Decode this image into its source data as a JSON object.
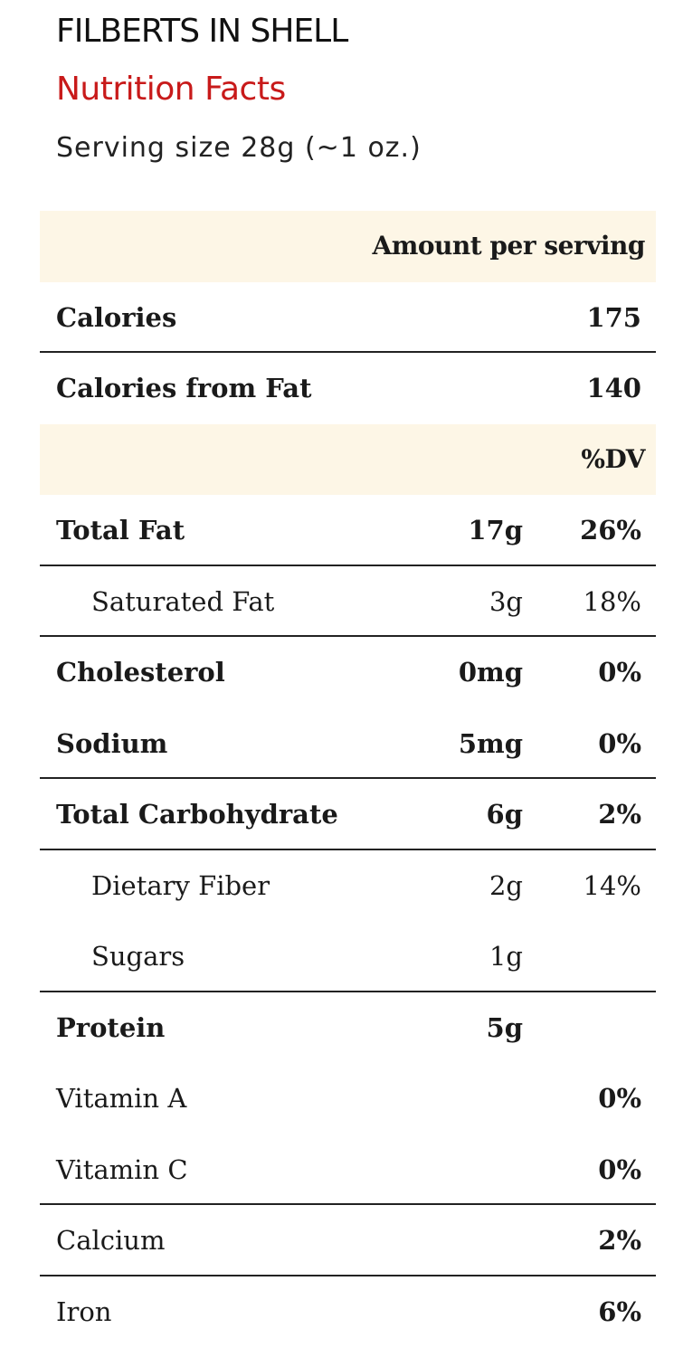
{
  "product_title": "FILBERTS IN SHELL",
  "label_heading": "Nutrition Facts",
  "serving_size": "Serving size 28g (~1 oz.)",
  "headers": {
    "amount_per_serving": "Amount per serving",
    "daily_value": "%DV"
  },
  "calories": {
    "label": "Calories",
    "value": "175"
  },
  "calories_from_fat": {
    "label": "Calories from Fat",
    "value": "140"
  },
  "nutrients": [
    {
      "label": "Total Fat",
      "amount": "17g",
      "dv": "26%"
    },
    {
      "label": "Saturated Fat",
      "amount": "3g",
      "dv": "18%"
    },
    {
      "label": "Cholesterol",
      "amount": "0mg",
      "dv": "0%"
    },
    {
      "label": "Sodium",
      "amount": "5mg",
      "dv": "0%"
    },
    {
      "label": "Total Carbohydrate",
      "amount": "6g",
      "dv": "2%"
    },
    {
      "label": "Dietary Fiber",
      "amount": "2g",
      "dv": "14%"
    },
    {
      "label": "Sugars",
      "amount": "1g",
      "dv": ""
    },
    {
      "label": "Protein",
      "amount": "5g",
      "dv": ""
    }
  ],
  "vitamins_minerals": [
    {
      "label": "Vitamin A",
      "dv": "0%"
    },
    {
      "label": "Vitamin C",
      "dv": "0%"
    },
    {
      "label": "Calcium",
      "dv": "2%"
    },
    {
      "label": "Iron",
      "dv": "6%"
    }
  ],
  "colors": {
    "heading_red": "#c81a1a",
    "header_band": "#fdf6e6",
    "rule": "#222222"
  }
}
